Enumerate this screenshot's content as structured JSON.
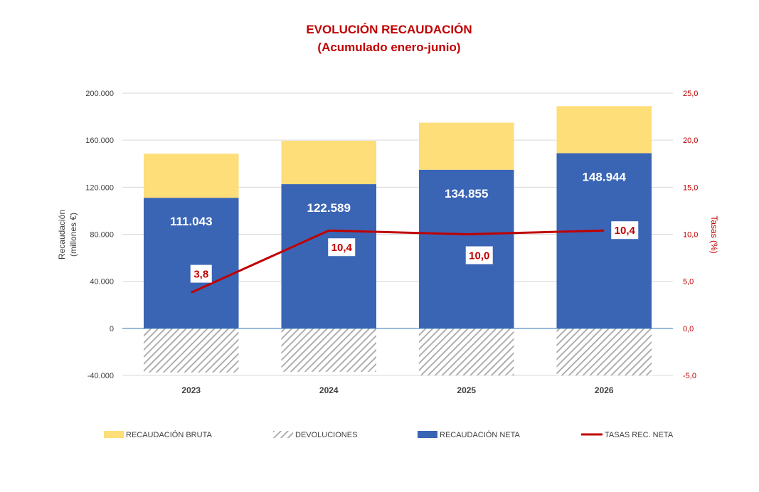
{
  "chart_data": {
    "type": "bar",
    "title": "EVOLUCIÓN RECAUDACIÓN",
    "subtitle": "(Acumulado enero-junio)",
    "categories": [
      "2023",
      "2024",
      "2025",
      "2026"
    ],
    "ylabel": "Recaudación",
    "ylabel_unit": "(millones €)",
    "ylabel_right": "Tasas (%)",
    "ylim": [
      -40000,
      200000
    ],
    "ylim_right": [
      -5,
      25
    ],
    "yticks": [
      -40000,
      0,
      40000,
      80000,
      120000,
      160000,
      200000
    ],
    "ytick_labels": [
      "-40.000",
      "0",
      "40.000",
      "80.000",
      "120.000",
      "160.000",
      "200.000"
    ],
    "yticks_right": [
      -5,
      0,
      5,
      10,
      15,
      20,
      25
    ],
    "ytick_labels_right": [
      "-5,0",
      "0,0",
      "5,0",
      "10,0",
      "15,0",
      "20,0",
      "25,0"
    ],
    "stacked": true,
    "grid": true,
    "legend_position": "bottom",
    "series": [
      {
        "name": "RECAUDACIÓN NETA",
        "kind": "bar",
        "color": "#3a65b5",
        "values": [
          111043,
          122589,
          134855,
          148944
        ],
        "labels": [
          "111.043",
          "122.589",
          "134.855",
          "148.944"
        ]
      },
      {
        "name": "RECAUDACIÓN BRUTA",
        "kind": "bar",
        "color": "#fdde78",
        "values": [
          37500,
          36900,
          40000,
          40000
        ]
      },
      {
        "name": "DEVOLUCIONES",
        "kind": "bar",
        "pattern": "diagonal-hatch",
        "color": "#a6a6a6",
        "values": [
          -37500,
          -36900,
          -40000,
          -40000
        ]
      },
      {
        "name": "TASAS REC. NETA",
        "kind": "line",
        "axis": "right",
        "color": "#c00000",
        "values": [
          3.8,
          10.4,
          10.0,
          10.4
        ],
        "labels": [
          "3,8",
          "10,4",
          "10,0",
          "10,4"
        ]
      }
    ]
  }
}
